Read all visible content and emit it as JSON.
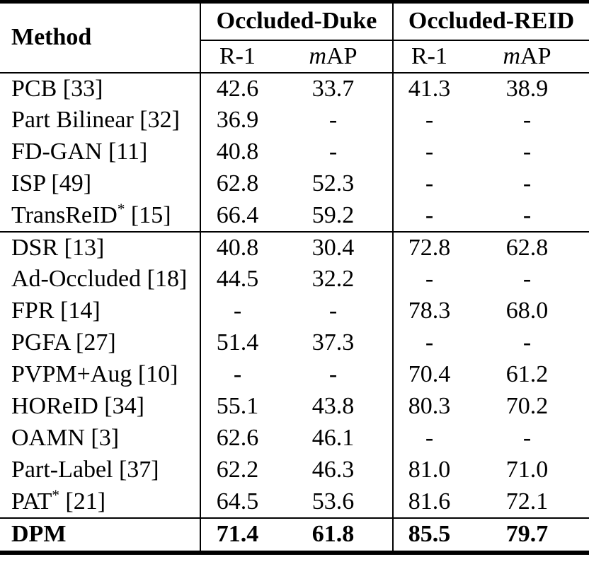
{
  "table": {
    "method_header": "Method",
    "groups": [
      {
        "label": "Occluded-Duke",
        "sub": [
          {
            "pre_italic": "",
            "text": "R-1"
          },
          {
            "pre_italic": "m",
            "text": "AP"
          }
        ]
      },
      {
        "label": "Occluded-REID",
        "sub": [
          {
            "pre_italic": "",
            "text": "R-1"
          },
          {
            "pre_italic": "m",
            "text": "AP"
          }
        ]
      }
    ],
    "missing_value": "-",
    "sections": [
      {
        "rows": [
          {
            "method": "PCB [33]",
            "values": [
              "42.6",
              "33.7",
              "41.3",
              "38.9"
            ]
          },
          {
            "method": "Part Bilinear [32]",
            "values": [
              "36.9",
              "-",
              "-",
              "-"
            ]
          },
          {
            "method": "FD-GAN [11]",
            "values": [
              "40.8",
              "-",
              "-",
              "-"
            ]
          },
          {
            "method": "ISP [49]",
            "values": [
              "62.8",
              "52.3",
              "-",
              "-"
            ]
          },
          {
            "method": "TransReID* [15]",
            "values": [
              "66.4",
              "59.2",
              "-",
              "-"
            ]
          }
        ]
      },
      {
        "rows": [
          {
            "method": "DSR [13]",
            "values": [
              "40.8",
              "30.4",
              "72.8",
              "62.8"
            ]
          },
          {
            "method": "Ad-Occluded [18]",
            "values": [
              "44.5",
              "32.2",
              "-",
              "-"
            ]
          },
          {
            "method": "FPR [14]",
            "values": [
              "-",
              "-",
              "78.3",
              "68.0"
            ]
          },
          {
            "method": "PGFA [27]",
            "values": [
              "51.4",
              "37.3",
              "-",
              "-"
            ]
          },
          {
            "method": "PVPM+Aug [10]",
            "values": [
              "-",
              "-",
              "70.4",
              "61.2"
            ]
          },
          {
            "method": "HOReID [34]",
            "values": [
              "55.1",
              "43.8",
              "80.3",
              "70.2"
            ]
          },
          {
            "method": "OAMN [3]",
            "values": [
              "62.6",
              "46.1",
              "-",
              "-"
            ]
          },
          {
            "method": "Part-Label [37]",
            "values": [
              "62.2",
              "46.3",
              "81.0",
              "71.0"
            ]
          },
          {
            "method": "PAT* [21]",
            "values": [
              "64.5",
              "53.6",
              "81.6",
              "72.1"
            ]
          }
        ]
      },
      {
        "rows": [
          {
            "method": "DPM",
            "values": [
              "71.4",
              "61.8",
              "85.5",
              "79.7"
            ],
            "bold": true
          }
        ]
      }
    ]
  }
}
